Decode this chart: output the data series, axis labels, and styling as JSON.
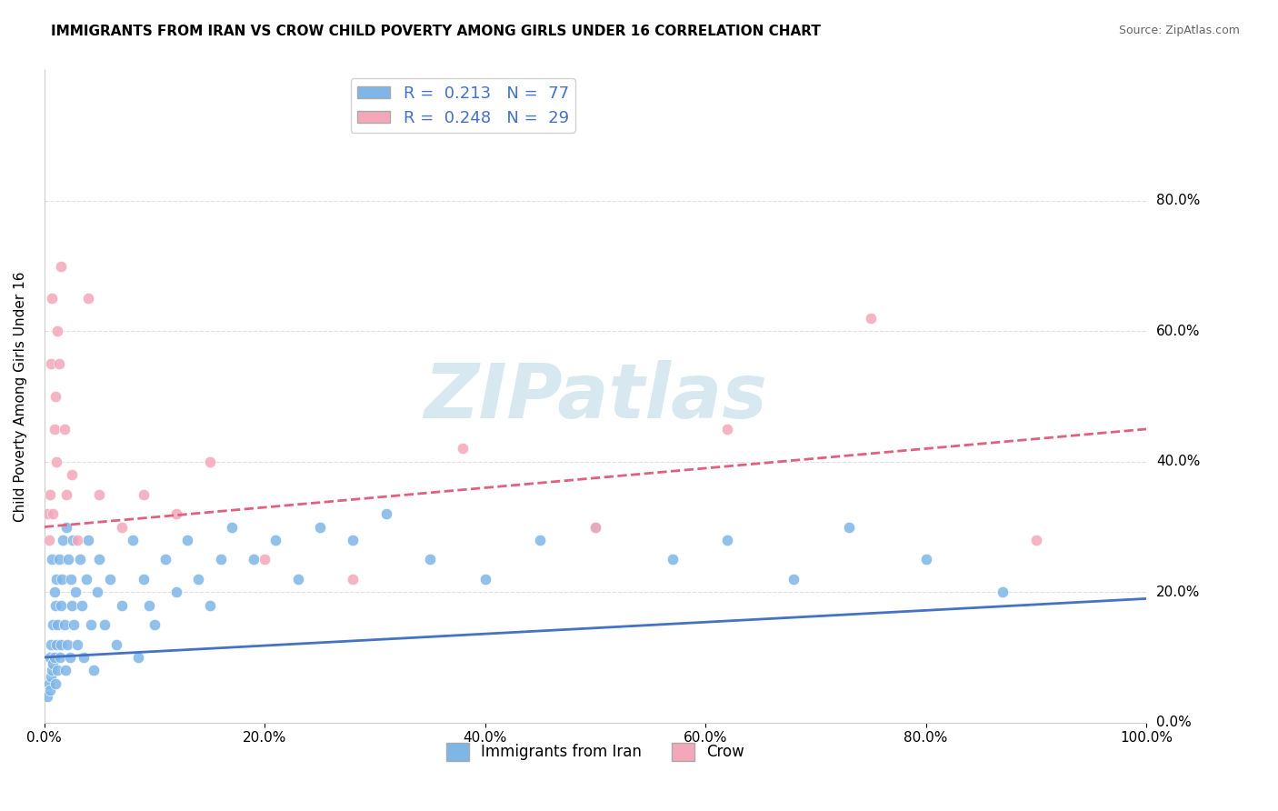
{
  "title": "IMMIGRANTS FROM IRAN VS CROW CHILD POVERTY AMONG GIRLS UNDER 16 CORRELATION CHART",
  "source": "Source: ZipAtlas.com",
  "xlabel": "",
  "ylabel": "Child Poverty Among Girls Under 16",
  "xlim": [
    0.0,
    1.0
  ],
  "ylim": [
    0.0,
    1.0
  ],
  "xtick_labels": [
    "0.0%",
    "20.0%",
    "40.0%",
    "60.0%",
    "80.0%",
    "100.0%"
  ],
  "ytick_labels_right": [
    "0.0%",
    "20.0%",
    "40.0%",
    "60.0%",
    "80.0%"
  ],
  "ytick_vals_right": [
    0.0,
    0.2,
    0.4,
    0.6,
    0.8
  ],
  "legend_label1": "Immigrants from Iran",
  "legend_label2": "Crow",
  "legend_R1": "0.213",
  "legend_N1": "77",
  "legend_R2": "0.248",
  "legend_N2": "29",
  "color_blue": "#7EB6E8",
  "color_pink": "#F4A7B9",
  "color_blue_text": "#4472C4",
  "color_pink_text": "#E06080",
  "watermark_text": "ZIPatlas",
  "watermark_color": "#D8E8F0",
  "background_color": "#FFFFFF",
  "grid_color": "#E0E0E0",
  "blue_scatter_x": [
    0.003,
    0.004,
    0.005,
    0.005,
    0.006,
    0.006,
    0.007,
    0.007,
    0.008,
    0.008,
    0.009,
    0.009,
    0.01,
    0.01,
    0.011,
    0.011,
    0.012,
    0.012,
    0.013,
    0.014,
    0.015,
    0.015,
    0.016,
    0.017,
    0.018,
    0.019,
    0.02,
    0.021,
    0.022,
    0.023,
    0.024,
    0.025,
    0.026,
    0.027,
    0.028,
    0.03,
    0.032,
    0.034,
    0.036,
    0.038,
    0.04,
    0.042,
    0.045,
    0.048,
    0.05,
    0.055,
    0.06,
    0.065,
    0.07,
    0.08,
    0.085,
    0.09,
    0.095,
    0.1,
    0.11,
    0.12,
    0.13,
    0.14,
    0.15,
    0.16,
    0.17,
    0.19,
    0.21,
    0.23,
    0.25,
    0.28,
    0.31,
    0.35,
    0.4,
    0.45,
    0.5,
    0.57,
    0.62,
    0.68,
    0.73,
    0.8,
    0.87
  ],
  "blue_scatter_y": [
    0.04,
    0.06,
    0.05,
    0.1,
    0.07,
    0.12,
    0.08,
    0.25,
    0.09,
    0.15,
    0.1,
    0.2,
    0.06,
    0.18,
    0.12,
    0.22,
    0.08,
    0.15,
    0.25,
    0.1,
    0.12,
    0.18,
    0.22,
    0.28,
    0.15,
    0.08,
    0.3,
    0.12,
    0.25,
    0.1,
    0.22,
    0.18,
    0.28,
    0.15,
    0.2,
    0.12,
    0.25,
    0.18,
    0.1,
    0.22,
    0.28,
    0.15,
    0.08,
    0.2,
    0.25,
    0.15,
    0.22,
    0.12,
    0.18,
    0.28,
    0.1,
    0.22,
    0.18,
    0.15,
    0.25,
    0.2,
    0.28,
    0.22,
    0.18,
    0.25,
    0.3,
    0.25,
    0.28,
    0.22,
    0.3,
    0.28,
    0.32,
    0.25,
    0.22,
    0.28,
    0.3,
    0.25,
    0.28,
    0.22,
    0.3,
    0.25,
    0.2
  ],
  "pink_scatter_x": [
    0.003,
    0.004,
    0.005,
    0.006,
    0.007,
    0.008,
    0.009,
    0.01,
    0.011,
    0.012,
    0.013,
    0.015,
    0.018,
    0.02,
    0.025,
    0.03,
    0.04,
    0.05,
    0.07,
    0.09,
    0.12,
    0.15,
    0.2,
    0.28,
    0.38,
    0.5,
    0.62,
    0.75,
    0.9
  ],
  "pink_scatter_y": [
    0.32,
    0.28,
    0.35,
    0.55,
    0.65,
    0.32,
    0.45,
    0.5,
    0.4,
    0.6,
    0.55,
    0.7,
    0.45,
    0.35,
    0.38,
    0.28,
    0.65,
    0.35,
    0.3,
    0.35,
    0.32,
    0.4,
    0.25,
    0.22,
    0.42,
    0.3,
    0.45,
    0.62,
    0.28
  ],
  "blue_trend_x": [
    0.0,
    1.0
  ],
  "blue_trend_y": [
    0.1,
    0.19
  ],
  "pink_trend_x": [
    0.0,
    1.0
  ],
  "pink_trend_y": [
    0.3,
    0.45
  ]
}
